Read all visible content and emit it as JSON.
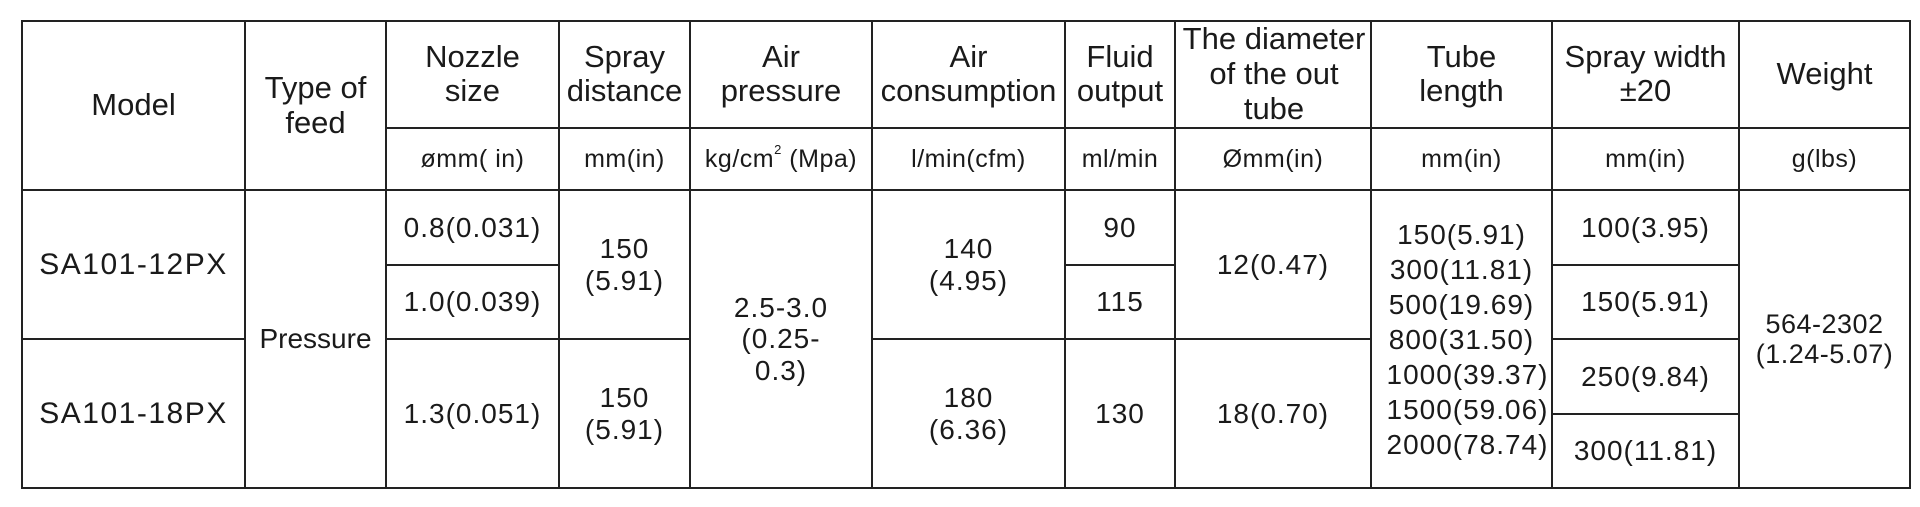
{
  "headers": [
    {
      "label": "Model"
    },
    {
      "label": "Type of feed"
    },
    {
      "label": "Nozzle size",
      "unit": "ømm( in)"
    },
    {
      "label": "Spray distance",
      "unit": "mm(in)"
    },
    {
      "label": "Air pressure",
      "unit_main": "kg/cm",
      "unit_sup": "2",
      "unit_tail": " (Mpa)"
    },
    {
      "label": "Air consumption",
      "unit": "l/min(cfm)"
    },
    {
      "label": "Fluid output",
      "unit": "ml/min"
    },
    {
      "label": "The diameter of the out tube",
      "unit": "Ømm(in)"
    },
    {
      "label": "Tube length",
      "unit": "mm(in)"
    },
    {
      "label": "Spray width ±20",
      "unit": "mm(in)"
    },
    {
      "label": "Weight",
      "unit": "g(lbs)"
    }
  ],
  "type_of_feed": "Pressure",
  "air_pressure": "2.5-3.0 (0.25-0.3)",
  "tube_length": "150(5.91) 300(11.81) 500(19.69) 800(31.50) 1000(39.37) 1500(59.06) 2000(78.74)",
  "weight": "564-2302 (1.24-5.07)",
  "models": [
    {
      "model": "SA101-12PX",
      "nozzle_sizes": [
        "0.8(0.031)",
        "1.0(0.039)"
      ],
      "spray_distance": "150 (5.91)",
      "air_consumption": "140 (4.95)",
      "fluid_outputs": [
        "90",
        "115"
      ],
      "out_tube_diameter": "12(0.47)"
    },
    {
      "model": "SA101-18PX",
      "nozzle_size": "1.3(0.051)",
      "spray_distance": "150 (5.91)",
      "air_consumption": "180 (6.36)",
      "fluid_output": "130",
      "out_tube_diameter": "18(0.70)"
    }
  ],
  "spray_widths": [
    "100(3.95)",
    "150(5.91)",
    "250(9.84)",
    "300(11.81)"
  ]
}
